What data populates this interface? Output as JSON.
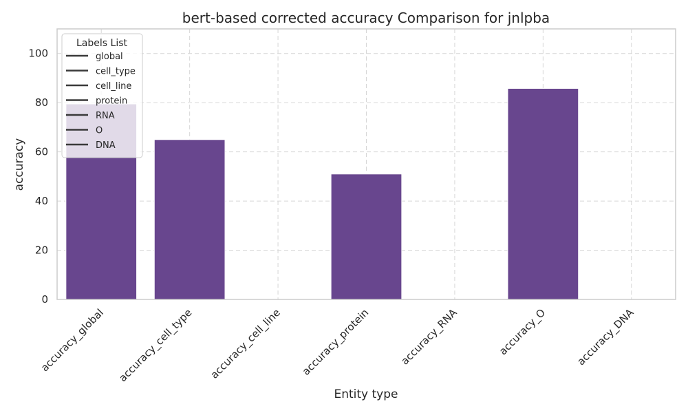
{
  "chart_data": {
    "type": "bar",
    "title": "bert-based corrected accuracy Comparison for jnlpba",
    "xlabel": "Entity type",
    "ylabel": "accuracy",
    "categories": [
      "accuracy_global",
      "accuracy_cell_type",
      "accuracy_cell_line",
      "accuracy_protein",
      "accuracy_RNA",
      "accuracy_O",
      "accuracy_DNA"
    ],
    "values": [
      79.5,
      65,
      0,
      51,
      0,
      85.8,
      0
    ],
    "ylim": [
      0,
      110
    ],
    "yticks": [
      0,
      20,
      40,
      60,
      80,
      100
    ],
    "grid": true,
    "bar_color": "#68468e",
    "legend": {
      "title": "Labels List",
      "placement": "top-left",
      "entries": [
        "global",
        "cell_type",
        "cell_line",
        "protein",
        "RNA",
        "O",
        "DNA"
      ]
    }
  }
}
